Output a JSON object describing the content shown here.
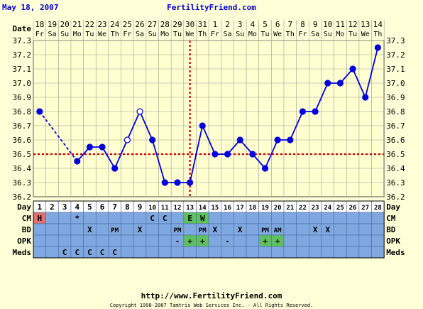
{
  "header": {
    "date_label": "May 18, 2007",
    "site_name": "FertilityFriend.com"
  },
  "footer": {
    "url": "http://www.FertilityFriend.com",
    "copyright": "Copyright 1998-2007 Tamtris Web Services Inc. - All Rights Reserved."
  },
  "row_labels": {
    "date": "Date",
    "day": "Day",
    "cm": "CM",
    "bd": "BD",
    "opk": "OPK",
    "meds": "Meds"
  },
  "colors": {
    "background": "#ffffd8",
    "plot_background": "#ffffd0",
    "grid": "#9a9a9a",
    "line": "#0000dd",
    "coverline": "#cc0000",
    "ovulation_line": "#cc0000",
    "table_cell": "#80a8e0",
    "header_blue": "#0000cc",
    "period": "#e07070",
    "egg_white": "#60c060",
    "positive_opk": "#60c060"
  },
  "chart_data": {
    "type": "line",
    "dates": [
      "18",
      "19",
      "20",
      "21",
      "22",
      "23",
      "24",
      "25",
      "26",
      "27",
      "28",
      "29",
      "30",
      "31",
      "1",
      "2",
      "3",
      "4",
      "5",
      "6",
      "7",
      "8",
      "9",
      "10",
      "11",
      "12",
      "13",
      "14"
    ],
    "weekdays": [
      "Fr",
      "Sa",
      "Su",
      "Mo",
      "Tu",
      "We",
      "Th",
      "Fr",
      "Sa",
      "Su",
      "Mo",
      "Tu",
      "We",
      "Th",
      "Fr",
      "Sa",
      "Su",
      "Mo",
      "Tu",
      "We",
      "Th",
      "Fr",
      "Sa",
      "Su",
      "Mo",
      "Tu",
      "We",
      "Th"
    ],
    "cycle_days": [
      "1",
      "2",
      "3",
      "4",
      "5",
      "6",
      "7",
      "8",
      "9",
      "10",
      "11",
      "12",
      "13",
      "14",
      "15",
      "16",
      "17",
      "18",
      "19",
      "20",
      "21",
      "22",
      "23",
      "24",
      "25",
      "26",
      "27",
      "28"
    ],
    "temperatures": [
      36.8,
      null,
      null,
      36.45,
      36.55,
      36.55,
      36.4,
      36.6,
      36.8,
      36.6,
      36.3,
      36.3,
      36.3,
      36.7,
      36.5,
      36.5,
      36.6,
      36.5,
      36.4,
      36.6,
      36.6,
      36.8,
      36.8,
      37.0,
      37.0,
      37.1,
      36.9,
      37.25
    ],
    "open_points": [
      8,
      9
    ],
    "dashed_segments": [
      [
        1,
        4
      ]
    ],
    "y_ticks": [
      "37.3",
      "37.2",
      "37.1",
      "37.0",
      "36.9",
      "36.8",
      "36.7",
      "36.6",
      "36.5",
      "36.4",
      "36.3",
      "36.2"
    ],
    "ylim": [
      36.2,
      37.3
    ],
    "coverline": 36.5,
    "ovulation_day": 13,
    "grid": true,
    "cm": [
      "H",
      "",
      "",
      "*",
      "",
      "",
      "",
      "",
      "",
      "C",
      "C",
      "",
      "E",
      "W",
      "",
      "",
      "",
      "",
      "",
      "",
      "",
      "",
      "",
      "",
      "",
      "",
      "",
      ""
    ],
    "bd": [
      "",
      "",
      "",
      "",
      "X",
      "",
      "PM",
      "",
      "X",
      "",
      "",
      "PM",
      "",
      "PM",
      "X",
      "",
      "X",
      "",
      "PM",
      "AM",
      "",
      "",
      "X",
      "X",
      "",
      "",
      "",
      ""
    ],
    "opk": [
      "",
      "",
      "",
      "",
      "",
      "",
      "",
      "",
      "",
      "",
      "",
      "-",
      "+",
      "+",
      "",
      "-",
      "",
      "",
      "+",
      "+",
      "",
      "",
      "",
      "",
      "",
      "",
      "",
      ""
    ],
    "meds": [
      "",
      "",
      "C",
      "C",
      "C",
      "C",
      "C",
      "",
      "",
      "",
      "",
      "",
      "",
      "",
      "",
      "",
      "",
      "",
      "",
      "",
      "",
      "",
      "",
      "",
      "",
      "",
      "",
      ""
    ]
  }
}
